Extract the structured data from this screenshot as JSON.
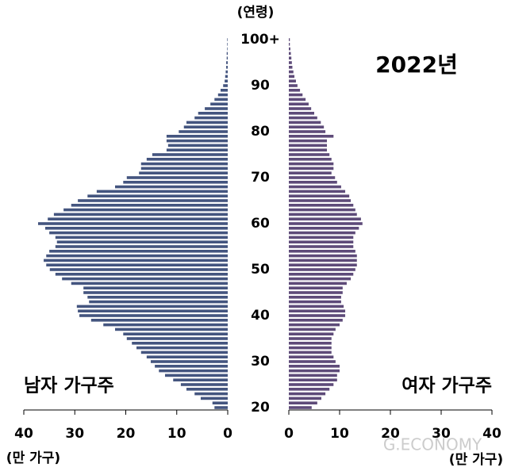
{
  "chart_data": {
    "type": "pyramid",
    "title": "2022년",
    "y_label": "(연령)",
    "x_label": "(만 가구)",
    "watermark": "G.ECONOMY",
    "categories": [
      "20",
      null,
      null,
      null,
      null,
      null,
      null,
      null,
      null,
      null,
      "30",
      null,
      null,
      null,
      null,
      null,
      null,
      null,
      null,
      null,
      "40",
      null,
      null,
      null,
      null,
      null,
      null,
      null,
      null,
      null,
      "50",
      null,
      null,
      null,
      null,
      null,
      null,
      null,
      null,
      null,
      "60",
      null,
      null,
      null,
      null,
      null,
      null,
      null,
      null,
      null,
      "70",
      null,
      null,
      null,
      null,
      null,
      null,
      null,
      null,
      null,
      "80",
      null,
      null,
      null,
      null,
      null,
      null,
      null,
      null,
      null,
      "90",
      null,
      null,
      null,
      null,
      null,
      null,
      null,
      null,
      null,
      "100+"
    ],
    "series": [
      {
        "name": "남자 가구주",
        "color": "#44557f",
        "side": "left",
        "values": [
          2.6,
          3,
          5.3,
          6.5,
          8.1,
          9.2,
          10.7,
          12.3,
          13.5,
          14.3,
          15.1,
          15.9,
          17,
          17.9,
          18.8,
          19.8,
          20.5,
          22.1,
          24.4,
          26.8,
          29.1,
          29.4,
          29.6,
          27.2,
          27.5,
          28.3,
          28.3,
          30.7,
          32.5,
          33.8,
          34.9,
          35.6,
          36.1,
          35.6,
          35,
          33.8,
          33.5,
          33.8,
          35,
          35.8,
          37.2,
          35.3,
          34.1,
          32.2,
          30.7,
          29.4,
          27.5,
          25.7,
          22.1,
          20.5,
          19.8,
          17.4,
          17,
          17,
          15.9,
          14.8,
          12,
          11.7,
          12,
          12,
          9.6,
          8.6,
          8.1,
          6.5,
          5.8,
          4.5,
          3.4,
          2.6,
          1.9,
          1.4,
          0.9,
          0.6,
          0.5,
          0.4,
          0.3,
          0.3,
          0.2,
          0.2,
          0.1,
          0.1,
          0.1
        ]
      },
      {
        "name": "여자 가구주",
        "color": "#5e4b79",
        "side": "right",
        "values": [
          4.5,
          5.6,
          6.4,
          7.2,
          8,
          8.8,
          9.5,
          9.5,
          10,
          10,
          9.2,
          8.8,
          8.4,
          8.4,
          8.4,
          8.4,
          8.8,
          9.2,
          10,
          10.6,
          11.1,
          11.1,
          10.8,
          10.3,
          10.3,
          10.6,
          10.6,
          11.4,
          12.2,
          12.7,
          13.1,
          13.4,
          13.4,
          13.4,
          13.1,
          12.7,
          12.7,
          12.7,
          13.1,
          13.8,
          14.5,
          14.2,
          13.4,
          13.1,
          12.7,
          12.2,
          11.9,
          11.1,
          10.3,
          9.5,
          9.1,
          8.4,
          8.8,
          8.8,
          8.4,
          8,
          7.5,
          7.5,
          7.5,
          8.8,
          7.2,
          6.9,
          6.3,
          5.6,
          5,
          4.4,
          3.9,
          3.3,
          2.7,
          2.2,
          1.7,
          1.4,
          1.1,
          0.9,
          0.7,
          0.6,
          0.5,
          0.4,
          0.3,
          0.2,
          0.2
        ]
      }
    ],
    "xlim": [
      0,
      40
    ],
    "xticks": [
      0,
      10,
      20,
      30,
      40
    ]
  }
}
